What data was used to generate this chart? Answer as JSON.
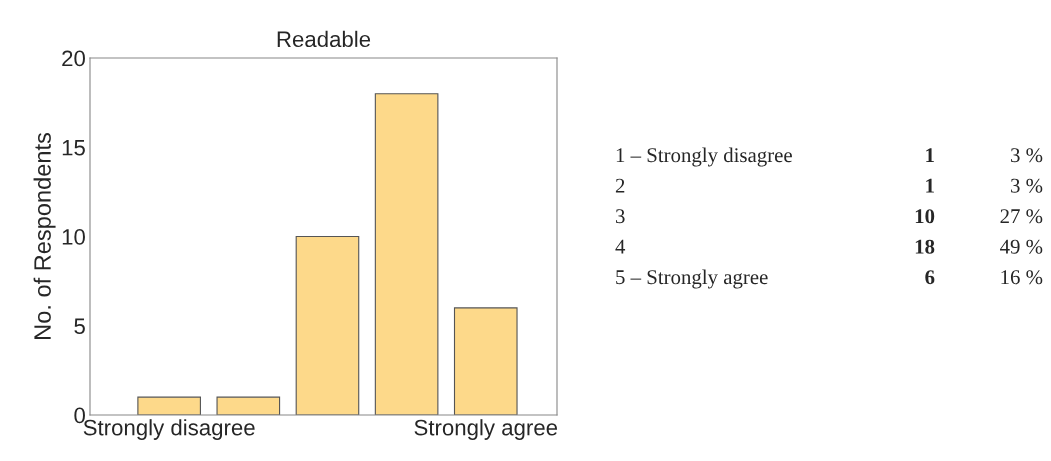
{
  "chart_data": {
    "type": "bar",
    "title": "Readable",
    "ylabel": "No. of Respondents",
    "categories": [
      "Strongly disagree",
      null,
      null,
      null,
      "Strongly agree"
    ],
    "values": [
      1,
      1,
      10,
      18,
      6
    ],
    "color": "#fdd98a",
    "ylim": [
      0,
      20
    ],
    "yticks": [
      0,
      5,
      10,
      15,
      20
    ],
    "grid": false,
    "annotations": [
      "1 – Strongly disagree",
      "1",
      "3 %",
      "2",
      "1",
      "3 %",
      "3",
      "10",
      "27 %",
      "4",
      "18",
      "49 %",
      "5 – Strongly agree",
      "6",
      "16 %"
    ]
  }
}
